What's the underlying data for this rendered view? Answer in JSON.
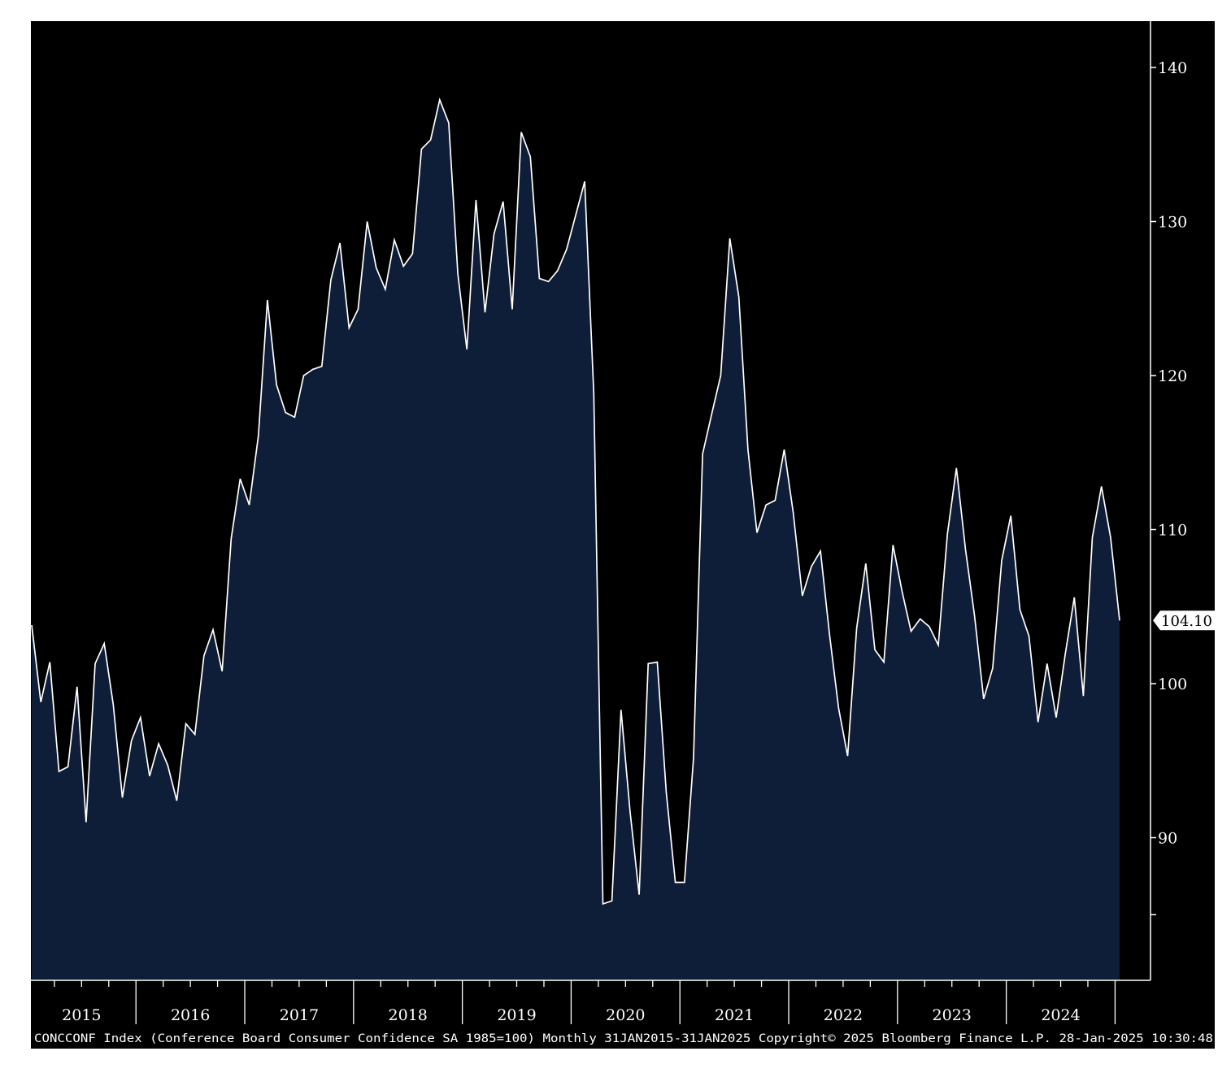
{
  "chart_data": {
    "type": "area",
    "ticker": "CONCCONF Index",
    "series": [
      {
        "values": [
          103.8,
          98.8,
          101.4,
          94.3,
          94.6,
          99.8,
          91.0,
          101.3,
          102.6,
          98.6,
          92.6,
          96.3,
          97.8,
          94.0,
          96.1,
          94.7,
          92.4,
          97.4,
          96.7,
          101.8,
          103.5,
          100.8,
          109.4,
          113.3,
          111.6,
          116.1,
          124.9,
          119.4,
          117.6,
          117.3,
          120.0,
          120.4,
          120.6,
          126.2,
          128.6,
          123.1,
          124.3,
          130.0,
          127.0,
          125.6,
          128.8,
          127.1,
          127.9,
          134.7,
          135.3,
          137.9,
          136.4,
          126.6,
          121.7,
          131.4,
          124.1,
          129.2,
          131.3,
          124.3,
          135.8,
          134.2,
          126.3,
          126.1,
          126.8,
          128.2,
          130.4,
          132.6,
          118.8,
          85.7,
          85.9,
          98.3,
          91.7,
          86.3,
          101.3,
          101.4,
          92.9,
          87.1,
          87.1,
          95.2,
          114.9,
          117.5,
          120.0,
          128.9,
          125.1,
          115.2,
          109.8,
          111.6,
          111.9,
          115.2,
          111.1,
          105.7,
          107.6,
          108.6,
          103.2,
          98.4,
          95.3,
          103.6,
          107.8,
          102.2,
          101.4,
          109.0,
          106.0,
          103.4,
          104.2,
          103.7,
          102.5,
          109.7,
          114.0,
          108.7,
          104.4,
          99.0,
          101.0,
          108.0,
          110.9,
          104.8,
          103.1,
          97.5,
          101.3,
          97.8,
          101.9,
          105.6,
          99.2,
          109.5,
          112.8,
          109.5,
          104.1
        ]
      }
    ],
    "x_start": "31JAN2015",
    "x_end": "31JAN2025",
    "frequency": "Monthly",
    "x_tick_labels": [
      "2015",
      "2016",
      "2017",
      "2018",
      "2019",
      "2020",
      "2021",
      "2022",
      "2023",
      "2024"
    ],
    "y_tick_labels": [
      "140",
      "130",
      "120",
      "110",
      "100",
      "90"
    ],
    "y_ticks": [
      140,
      130,
      120,
      110,
      100,
      90
    ],
    "ylim": [
      80.5,
      143
    ],
    "last_value_label": "104.10",
    "grid": false,
    "footer": "CONCCONF Index (Conference Board Consumer Confidence SA 1985=100)  Monthly 31JAN2015-31JAN2025  Copyright© 2025 Bloomberg Finance L.P.  28-Jan-2025 10:30:48",
    "colors": {
      "background": "#000000",
      "area_fill": "#0e1d38",
      "line": "#ffffff",
      "axis": "#ffffff",
      "page": "#ffffff"
    }
  }
}
